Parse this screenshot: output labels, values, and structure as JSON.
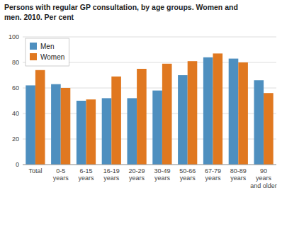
{
  "chart_data": {
    "type": "bar",
    "title": "Persons with regular GP consultation, by age groups. Women and\nmen. 2010. Per cent",
    "categories": [
      "Total",
      "0-5\nyears",
      "6-15\nyears",
      "16-19\nyears",
      "20-29\nyears",
      "30-49\nyears",
      "50-66\nyears",
      "67-79\nyears",
      "80-89\nyears",
      "90\nyears\nand older"
    ],
    "series": [
      {
        "name": "Men",
        "color": "#4E8FBF",
        "values": [
          62,
          63,
          50,
          52,
          52,
          58,
          70,
          84,
          83,
          66
        ]
      },
      {
        "name": "Women",
        "color": "#E07820",
        "values": [
          74,
          60,
          51,
          69,
          75,
          79,
          81,
          87,
          80,
          56
        ]
      }
    ],
    "ylim": [
      0,
      100
    ],
    "yticks": [
      0,
      20,
      40,
      60,
      80,
      100
    ],
    "grid": true,
    "legend": "upper left"
  }
}
